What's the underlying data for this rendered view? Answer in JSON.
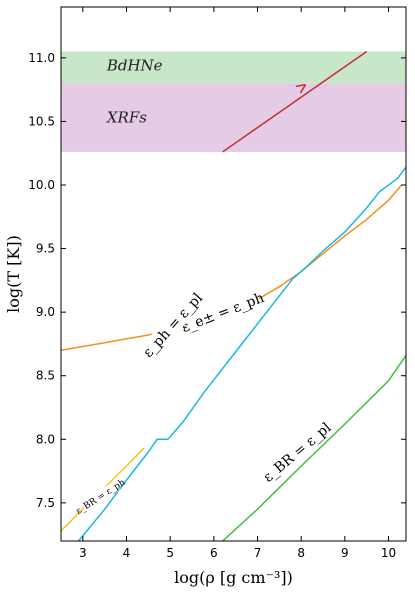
{
  "chart_data": {
    "type": "line",
    "xlabel": "log(ρ [g cm⁻³])",
    "ylabel": "log(T [K])",
    "xlim": [
      2.5,
      10.4
    ],
    "ylim": [
      7.2,
      11.4
    ],
    "xticks": [
      3,
      4,
      5,
      6,
      7,
      8,
      9,
      10
    ],
    "yticks": [
      7.5,
      8.0,
      8.5,
      9.0,
      9.5,
      10.0,
      10.5,
      11.0
    ],
    "grid": false,
    "bands": [
      {
        "name": "BdHNe",
        "y": [
          10.8,
          11.05
        ],
        "color": "#c8e6c8",
        "label_x": 3.55,
        "label_y": 10.94
      },
      {
        "name": "XRFs",
        "y": [
          10.26,
          10.8
        ],
        "color": "#e6cbe6",
        "label_x": 3.55,
        "label_y": 10.53
      }
    ],
    "series": [
      {
        "name": "ε_e± = ε_ph",
        "color": "#f5901e",
        "x": [
          2.5,
          3.0,
          3.5,
          4.0,
          4.5,
          5.0,
          5.5,
          6.0,
          6.5,
          7.0,
          7.5,
          8.0,
          8.5,
          9.0,
          9.5,
          10.0,
          10.3
        ],
        "y": [
          8.7,
          8.73,
          8.76,
          8.79,
          8.82,
          8.86,
          8.9,
          8.95,
          9.02,
          9.1,
          9.2,
          9.32,
          9.46,
          9.6,
          9.73,
          9.88,
          10.0
        ]
      },
      {
        "name": "ε_ph = ε_pl",
        "color": "#1ab8e8",
        "x": [
          2.9,
          3.5,
          4.0,
          4.5,
          4.7,
          4.95,
          5.3,
          5.8,
          6.3,
          6.8,
          7.3,
          7.8,
          8.1,
          8.5,
          9.0,
          9.5,
          9.8,
          10.2,
          10.4
        ],
        "y": [
          7.2,
          7.45,
          7.68,
          7.9,
          8.0,
          8.0,
          8.14,
          8.38,
          8.6,
          8.82,
          9.04,
          9.26,
          9.35,
          9.48,
          9.63,
          9.82,
          9.95,
          10.05,
          10.14
        ]
      },
      {
        "name": "ε_BR = ε_ph",
        "color": "#f3c222",
        "x": [
          2.5,
          3.0,
          3.5,
          4.0,
          4.4
        ],
        "y": [
          7.28,
          7.45,
          7.62,
          7.79,
          7.93
        ]
      },
      {
        "name": "ε_BR = ε_pl",
        "color": "#3cc23c",
        "x": [
          6.2,
          7.0,
          8.0,
          9.0,
          10.0,
          10.4
        ],
        "y": [
          7.2,
          7.45,
          7.79,
          8.12,
          8.46,
          8.66
        ]
      }
    ],
    "arrow": {
      "color": "#c0302e",
      "x": [
        6.2,
        9.5
      ],
      "y": [
        10.26,
        11.05
      ],
      "head_at": [
        8.1,
        10.79
      ]
    },
    "curve_labels": [
      {
        "text": "ε_e± = ε_ph",
        "x": 6.2,
        "y": 9.0
      },
      {
        "text": "ε_ph = ε_pl",
        "x": 5.05,
        "y": 8.9
      },
      {
        "text": "ε_BR = ε_pl",
        "x": 7.9,
        "y": 7.9
      },
      {
        "text": "ε_BR = ε_ph",
        "x": 3.4,
        "y": 7.55
      }
    ]
  }
}
